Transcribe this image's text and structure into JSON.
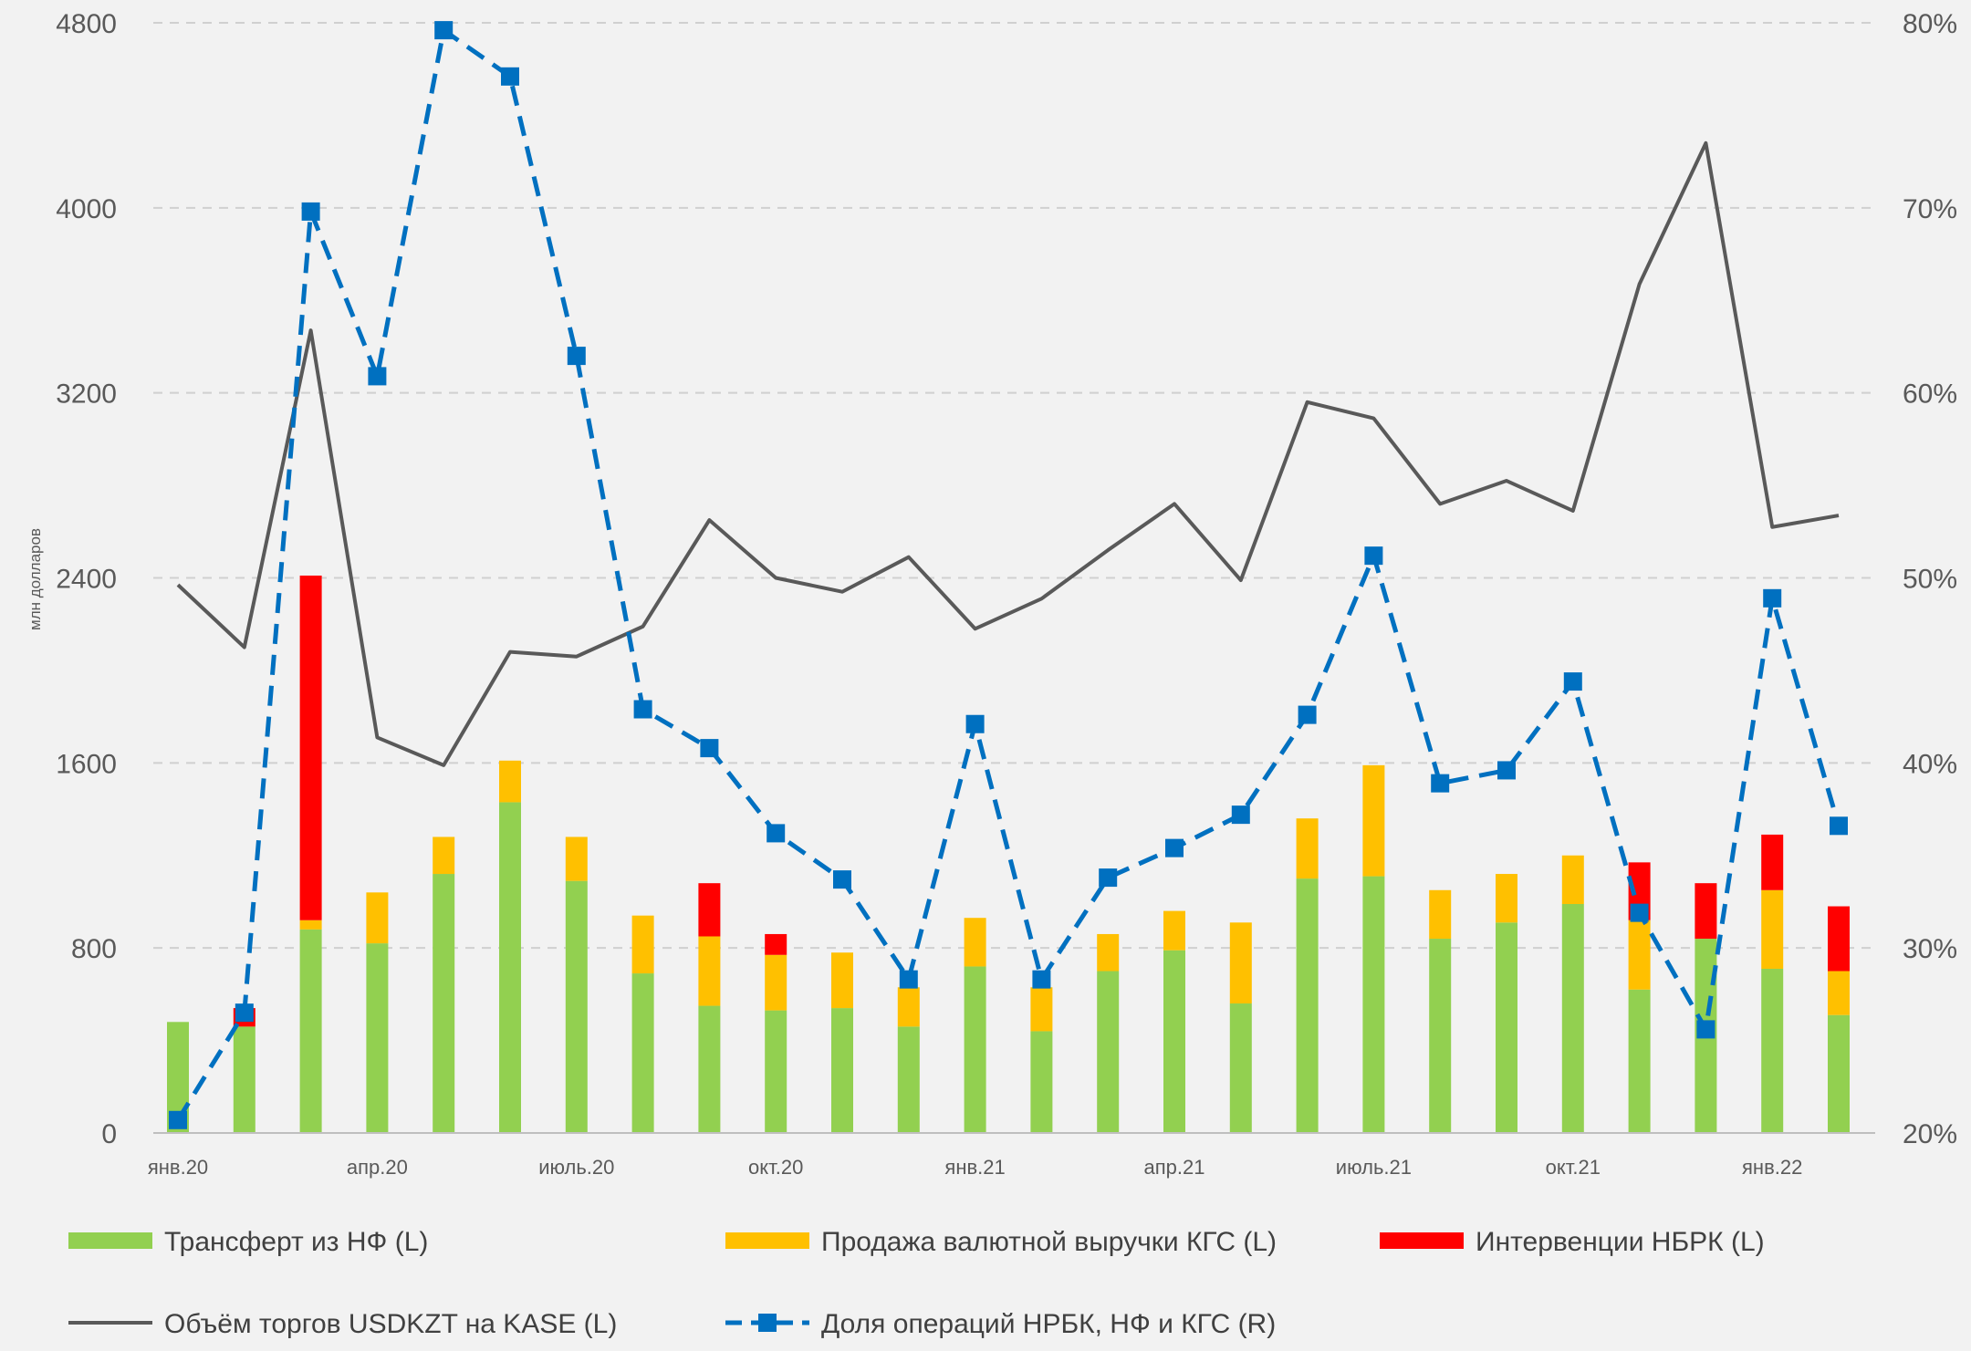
{
  "chart_data": {
    "type": "bar",
    "stacked": true,
    "categories": [
      "янв.20",
      "фев.20",
      "мар.20",
      "апр.20",
      "май.20",
      "июн.20",
      "июль.20",
      "авг.20",
      "сен.20",
      "окт.20",
      "ноя.20",
      "дек.20",
      "янв.21",
      "фев.21",
      "мар.21",
      "апр.21",
      "май.21",
      "июн.21",
      "июль.21",
      "авг.21",
      "сен.21",
      "окт.21",
      "ноя.21",
      "дек.21",
      "янв.22",
      "фев.22"
    ],
    "x_tick_labels": [
      "янв.20",
      "апр.20",
      "июль.20",
      "окт.20",
      "янв.21",
      "апр.21",
      "июль.21",
      "окт.21",
      "янв.22"
    ],
    "x_tick_indices": [
      0,
      3,
      6,
      9,
      12,
      15,
      18,
      21,
      24
    ],
    "ylabel": "млн долларов",
    "ylim": [
      0,
      4800
    ],
    "y_ticks": [
      0,
      800,
      1600,
      2400,
      3200,
      4000,
      4800
    ],
    "y2lim": [
      20,
      80
    ],
    "y2_ticks": [
      20,
      30,
      40,
      50,
      60,
      70,
      80
    ],
    "y2_unit": "%",
    "grid": "horizontal dashed",
    "legend_position": "bottom",
    "series": [
      {
        "name": "Трансферт из НФ (L)",
        "kind": "bar",
        "axis": "left",
        "color": "#92d050",
        "values": [
          480,
          460,
          880,
          820,
          1120,
          1430,
          1090,
          690,
          550,
          530,
          540,
          460,
          720,
          440,
          700,
          790,
          560,
          1100,
          1110,
          840,
          910,
          990,
          620,
          840,
          710,
          510
        ]
      },
      {
        "name": "Продажа валютной выручки КГС (L)",
        "kind": "bar",
        "axis": "left",
        "color": "#ffc000",
        "values": [
          0,
          0,
          40,
          220,
          160,
          180,
          190,
          250,
          300,
          240,
          240,
          170,
          210,
          190,
          160,
          170,
          350,
          260,
          480,
          210,
          210,
          210,
          300,
          0,
          340,
          190
        ]
      },
      {
        "name": "Интервенции НБРК (L)",
        "kind": "bar",
        "axis": "left",
        "color": "#ff0000",
        "values": [
          0,
          80,
          1490,
          0,
          0,
          0,
          0,
          0,
          230,
          90,
          0,
          0,
          0,
          0,
          0,
          0,
          0,
          0,
          0,
          0,
          0,
          0,
          250,
          240,
          240,
          280
        ]
      },
      {
        "name": "Объём торгов USDKZT на KASE (L)",
        "kind": "line",
        "axis": "left",
        "color": "#595959",
        "values": [
          2370,
          2100,
          3470,
          1710,
          1590,
          2080,
          2060,
          2190,
          2650,
          2400,
          2340,
          2490,
          2180,
          2310,
          2520,
          2720,
          2390,
          3160,
          3090,
          2720,
          2820,
          2690,
          3670,
          4280,
          2620,
          2670
        ]
      },
      {
        "name": "Доля операций НРБК, НФ и КГС (R)",
        "kind": "line",
        "axis": "right",
        "color": "#0070c0",
        "dashed": true,
        "values": [
          20.7,
          26.5,
          69.8,
          60.9,
          79.6,
          77.1,
          62.0,
          42.9,
          40.8,
          36.2,
          33.7,
          28.3,
          42.1,
          28.3,
          33.8,
          35.4,
          37.2,
          42.6,
          51.2,
          38.9,
          39.6,
          44.4,
          31.9,
          25.6,
          48.9,
          36.6
        ]
      }
    ]
  }
}
